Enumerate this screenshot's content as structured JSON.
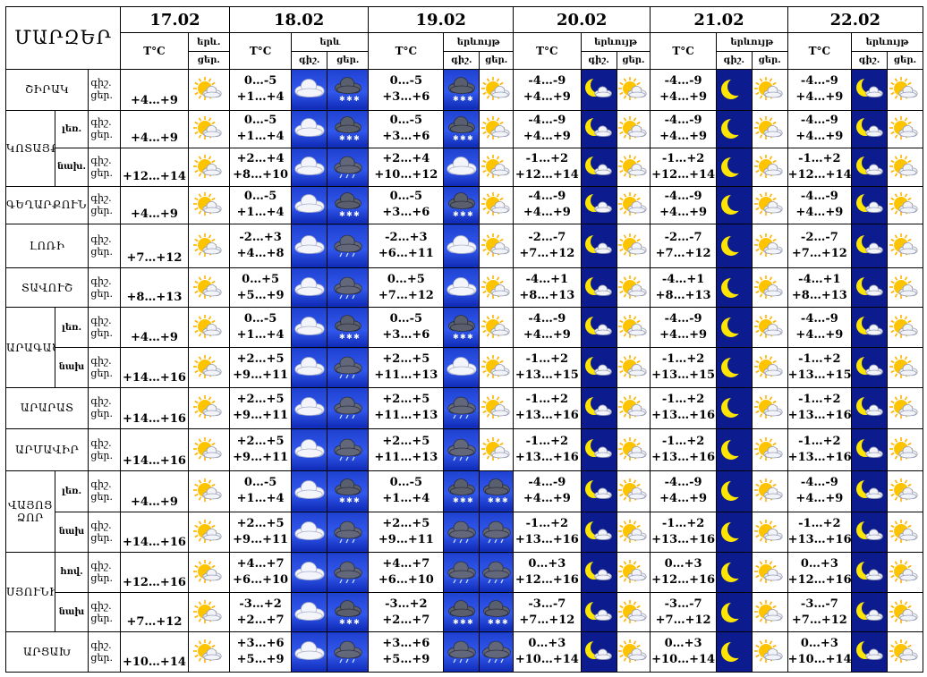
{
  "header": {
    "corner": "ՄԱՐԶԵՐ",
    "temp_label": "T°C",
    "dates": [
      "17.02",
      "18.02",
      "19.02",
      "20.02",
      "21.02",
      "22.02"
    ],
    "phen_labels": [
      "երև.",
      "երև",
      "երևույթ",
      "երևույթ",
      "երևույթ",
      "երևույթ"
    ],
    "day_label": "ցեր.",
    "night_label": "գիշ."
  },
  "icons": {
    "sun_cloud": "sun-behind-cloud-icon",
    "cloud": "cloud-icon",
    "snow_cloud": "cloud-with-snow-icon",
    "rain_cloud": "cloud-with-rain-icon",
    "moon_cloud": "moon-with-cloud-icon",
    "moon": "crescent-moon-icon"
  },
  "colors": {
    "blue_tile": "#2a4fe6",
    "navy_tile": "#0c1c8e",
    "moon": "#ffe600",
    "sun": "#ffc400"
  },
  "rows": [
    {
      "region": "ՇԻՐԱԿ",
      "sub": "",
      "d17": "+4…+9",
      "d18n": "0…-5",
      "d18d": "+1…+4",
      "i18a": "cloud",
      "i18b": "snow_cloud",
      "d19n": "0…-5",
      "d19d": "+3…+6",
      "i19a": "snow_cloud",
      "i19b": "sun_cloud",
      "d20n": "-4…-9",
      "d20d": "+4…+9",
      "d21n": "-4…-9",
      "d21d": "+4…+9",
      "d22n": "-4…-9",
      "d22d": "+4…+9"
    },
    {
      "region": "ԿՈՏԱՅՔ",
      "sub": "լեռ.",
      "d17": "+4…+9",
      "d18n": "0…-5",
      "d18d": "+1…+4",
      "i18a": "cloud",
      "i18b": "snow_cloud",
      "d19n": "0…-5",
      "d19d": "+3…+6",
      "i19a": "snow_cloud",
      "i19b": "sun_cloud",
      "d20n": "-4…-9",
      "d20d": "+4…+9",
      "d21n": "-4…-9",
      "d21d": "+4…+9",
      "d22n": "-4…-9",
      "d22d": "+4…+9"
    },
    {
      "region": "",
      "sub": "նախ.",
      "d17": "+12…+14",
      "d18n": "+2…+4",
      "d18d": "+8…+10",
      "i18a": "cloud",
      "i18b": "rain_cloud",
      "d19n": "+2…+4",
      "d19d": "+10…+12",
      "i19a": "cloud",
      "i19b": "sun_cloud",
      "d20n": "-1…+2",
      "d20d": "+12…+14",
      "d21n": "-1…+2",
      "d21d": "+12…+14",
      "d22n": "-1…+2",
      "d22d": "+12…+14"
    },
    {
      "region": "ԳԵՂԱՐՔՈՒՆԻՔ",
      "sub": "",
      "d17": "+4…+9",
      "d18n": "0…-5",
      "d18d": "+1…+4",
      "i18a": "cloud",
      "i18b": "snow_cloud",
      "d19n": "0…-5",
      "d19d": "+3…+6",
      "i19a": "snow_cloud",
      "i19b": "sun_cloud",
      "d20n": "-4…-9",
      "d20d": "+4…+9",
      "d21n": "-4…-9",
      "d21d": "+4…+9",
      "d22n": "-4…-9",
      "d22d": "+4…+9"
    },
    {
      "region": "ԼՈՌԻ",
      "sub": "",
      "d17": "+7…+12",
      "d18n": "-2…+3",
      "d18d": "+4…+8",
      "i18a": "cloud",
      "i18b": "rain_cloud",
      "d19n": "-2…+3",
      "d19d": "+6…+11",
      "i19a": "cloud",
      "i19b": "sun_cloud",
      "d20n": "-2…-7",
      "d20d": "+7…+12",
      "d21n": "-2…-7",
      "d21d": "+7…+12",
      "d22n": "-2…-7",
      "d22d": "+7…+12"
    },
    {
      "region": "ՏԱՎՈՒՇ",
      "sub": "",
      "d17": "+8…+13",
      "d18n": "0…+5",
      "d18d": "+5…+9",
      "i18a": "cloud",
      "i18b": "rain_cloud",
      "d19n": "0…+5",
      "d19d": "+7…+12",
      "i19a": "cloud",
      "i19b": "sun_cloud",
      "d20n": "-4…+1",
      "d20d": "+8…+13",
      "d21n": "-4…+1",
      "d21d": "+8…+13",
      "d22n": "-4…+1",
      "d22d": "+8…+13"
    },
    {
      "region": "ԱՐԱԳԱԾՈՏՆ",
      "sub": "լեռ.",
      "d17": "+4…+9",
      "d18n": "0…-5",
      "d18d": "+1…+4",
      "i18a": "cloud",
      "i18b": "snow_cloud",
      "d19n": "0…-5",
      "d19d": "+3…+6",
      "i19a": "snow_cloud",
      "i19b": "sun_cloud",
      "d20n": "-4…-9",
      "d20d": "+4…+9",
      "d21n": "-4…-9",
      "d21d": "+4…+9",
      "d22n": "-4…-9",
      "d22d": "+4…+9"
    },
    {
      "region": "",
      "sub": "նախ",
      "d17": "+14…+16",
      "d18n": "+2…+5",
      "d18d": "+9…+11",
      "i18a": "cloud",
      "i18b": "rain_cloud",
      "d19n": "+2…+5",
      "d19d": "+11…+13",
      "i19a": "cloud",
      "i19b": "sun_cloud",
      "d20n": "-1…+2",
      "d20d": "+13…+15",
      "d21n": "-1…+2",
      "d21d": "+13…+15",
      "d22n": "-1…+2",
      "d22d": "+13…+15"
    },
    {
      "region": "ԱՐԱՐԱՏ",
      "sub": "",
      "d17": "+14…+16",
      "d18n": "+2…+5",
      "d18d": "+9…+11",
      "i18a": "cloud",
      "i18b": "rain_cloud",
      "d19n": "+2…+5",
      "d19d": "+11…+13",
      "i19a": "rain_cloud",
      "i19b": "sun_cloud",
      "d20n": "-1…+2",
      "d20d": "+13…+16",
      "d21n": "-1…+2",
      "d21d": "+13…+16",
      "d22n": "-1…+2",
      "d22d": "+13…+16"
    },
    {
      "region": "ԱՐՄԱՎԻՐ",
      "sub": "",
      "d17": "+14…+16",
      "d18n": "+2…+5",
      "d18d": "+9…+11",
      "i18a": "cloud",
      "i18b": "rain_cloud",
      "d19n": "+2…+5",
      "d19d": "+11…+13",
      "i19a": "rain_cloud",
      "i19b": "sun_cloud",
      "d20n": "-1…+2",
      "d20d": "+13…+16",
      "d21n": "-1…+2",
      "d21d": "+13…+16",
      "d22n": "-1…+2",
      "d22d": "+13…+16"
    },
    {
      "region": "ՎԱՅՈՑ ՁՈՐ",
      "sub": "լեռ.",
      "d17": "+4…+9",
      "d18n": "0…-5",
      "d18d": "+1…+4",
      "i18a": "cloud",
      "i18b": "snow_cloud",
      "d19n": "0…-5",
      "d19d": "+1…+4",
      "i19a": "snow_cloud",
      "i19b": "snow_cloud",
      "d20n": "-4…-9",
      "d20d": "+4…+9",
      "d21n": "-4…-9",
      "d21d": "+4…+9",
      "d22n": "-4…-9",
      "d22d": "+4…+9"
    },
    {
      "region": "",
      "sub": "նախ",
      "d17": "+14…+16",
      "d18n": "+2…+5",
      "d18d": "+9…+11",
      "i18a": "cloud",
      "i18b": "rain_cloud",
      "d19n": "+2…+5",
      "d19d": "+9…+11",
      "i19a": "rain_cloud",
      "i19b": "rain_cloud",
      "d20n": "-1…+2",
      "d20d": "+13…+16",
      "d21n": "-1…+2",
      "d21d": "+13…+16",
      "d22n": "-1…+2",
      "d22d": "+13…+16"
    },
    {
      "region": "ՍՅՈՒՆԻՔ",
      "sub": "հով.",
      "d17": "+12…+16",
      "d18n": "+4…+7",
      "d18d": "+6…+10",
      "i18a": "cloud",
      "i18b": "rain_cloud",
      "d19n": "+4…+7",
      "d19d": "+6…+10",
      "i19a": "rain_cloud",
      "i19b": "rain_cloud",
      "d20n": "0…+3",
      "d20d": "+12…+16",
      "d21n": "0…+3",
      "d21d": "+12…+16",
      "d22n": "0…+3",
      "d22d": "+12…+16"
    },
    {
      "region": "",
      "sub": "նախ",
      "d17": "+7…+12",
      "d18n": "-3…+2",
      "d18d": "+2…+7",
      "i18a": "cloud",
      "i18b": "snow_cloud",
      "d19n": "-3…+2",
      "d19d": "+2…+7",
      "i19a": "snow_cloud",
      "i19b": "snow_cloud",
      "d20n": "-3…-7",
      "d20d": "+7…+12",
      "d21n": "-3…-7",
      "d21d": "+7…+12",
      "d22n": "-3…-7",
      "d22d": "+7…+12"
    },
    {
      "region": "ԱՐՑԱԽ",
      "sub": "",
      "d17": "+10…+14",
      "d18n": "+3…+6",
      "d18d": "+5…+9",
      "i18a": "cloud",
      "i18b": "rain_cloud",
      "d19n": "+3…+6",
      "d19d": "+5…+9",
      "i19a": "rain_cloud",
      "i19b": "rain_cloud",
      "d20n": "0…+3",
      "d20d": "+10…+14",
      "d21n": "0…+3",
      "d21d": "+10…+14",
      "d22n": "0…+3",
      "d22d": "+10…+14"
    }
  ]
}
